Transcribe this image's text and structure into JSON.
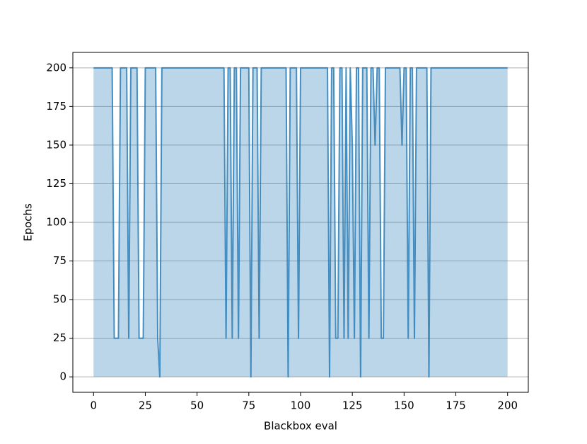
{
  "chart_data": {
    "type": "line",
    "xlabel": "Blackbox eval",
    "ylabel": "Epochs",
    "x": [
      0,
      1,
      2,
      3,
      4,
      5,
      6,
      7,
      8,
      9,
      10,
      11,
      12,
      13,
      14,
      15,
      16,
      17,
      18,
      19,
      20,
      21,
      22,
      23,
      24,
      25,
      26,
      27,
      28,
      29,
      30,
      31,
      32,
      33,
      34,
      35,
      36,
      37,
      38,
      39,
      40,
      41,
      42,
      43,
      44,
      45,
      46,
      47,
      48,
      49,
      50,
      51,
      52,
      53,
      54,
      55,
      56,
      57,
      58,
      59,
      60,
      61,
      62,
      63,
      64,
      65,
      66,
      67,
      68,
      69,
      70,
      71,
      72,
      73,
      74,
      75,
      76,
      77,
      78,
      79,
      80,
      81,
      82,
      83,
      84,
      85,
      86,
      87,
      88,
      89,
      90,
      91,
      92,
      93,
      94,
      95,
      96,
      97,
      98,
      99,
      100,
      101,
      102,
      103,
      104,
      105,
      106,
      107,
      108,
      109,
      110,
      111,
      112,
      113,
      114,
      115,
      116,
      117,
      118,
      119,
      120,
      121,
      122,
      123,
      124,
      125,
      126,
      127,
      128,
      129,
      130,
      131,
      132,
      133,
      134,
      135,
      136,
      137,
      138,
      139,
      140,
      141,
      142,
      143,
      144,
      145,
      146,
      147,
      148,
      149,
      150,
      151,
      152,
      153,
      154,
      155,
      156,
      157,
      158,
      159,
      160,
      161,
      162,
      163,
      164,
      165,
      166,
      167,
      168,
      169,
      170,
      171,
      172,
      173,
      174,
      175,
      176,
      177,
      178,
      179,
      180,
      181,
      182,
      183,
      184,
      185,
      186,
      187,
      188,
      189,
      190,
      191,
      192,
      193,
      194,
      195,
      196,
      197,
      198,
      199,
      200
    ],
    "values": [
      200,
      200,
      200,
      200,
      200,
      200,
      200,
      200,
      200,
      200,
      25,
      25,
      25,
      200,
      200,
      200,
      200,
      25,
      200,
      200,
      200,
      200,
      25,
      25,
      25,
      200,
      200,
      200,
      200,
      200,
      200,
      25,
      0,
      200,
      200,
      200,
      200,
      200,
      200,
      200,
      200,
      200,
      200,
      200,
      200,
      200,
      200,
      200,
      200,
      200,
      200,
      200,
      200,
      200,
      200,
      200,
      200,
      200,
      200,
      200,
      200,
      200,
      200,
      200,
      25,
      200,
      200,
      25,
      200,
      200,
      25,
      200,
      200,
      200,
      200,
      200,
      0,
      200,
      200,
      200,
      25,
      200,
      200,
      200,
      200,
      200,
      200,
      200,
      200,
      200,
      200,
      200,
      200,
      200,
      0,
      200,
      200,
      200,
      200,
      25,
      200,
      200,
      200,
      200,
      200,
      200,
      200,
      200,
      200,
      200,
      200,
      200,
      200,
      200,
      0,
      200,
      200,
      25,
      25,
      200,
      200,
      25,
      200,
      25,
      200,
      150,
      25,
      200,
      200,
      0,
      200,
      200,
      200,
      25,
      200,
      200,
      150,
      200,
      200,
      25,
      25,
      200,
      200,
      200,
      200,
      200,
      200,
      200,
      200,
      150,
      200,
      200,
      25,
      200,
      200,
      25,
      200,
      200,
      200,
      200,
      200,
      200,
      0,
      200,
      200,
      200,
      200,
      200,
      200,
      200,
      200,
      200,
      200,
      200,
      200,
      200,
      200,
      200,
      200,
      200,
      200,
      200,
      200,
      200,
      200,
      200,
      200,
      200,
      200,
      200,
      200,
      200,
      200,
      200,
      200,
      200,
      200,
      200,
      200,
      200,
      200
    ],
    "color": "#1f77b4",
    "fill": true,
    "xlim": [
      -10,
      210
    ],
    "xticks": [
      0,
      25,
      50,
      75,
      100,
      125,
      150,
      175,
      200
    ],
    "ylim": [
      -10,
      210
    ],
    "yticks": [
      0,
      25,
      50,
      75,
      100,
      125,
      150,
      175,
      200
    ],
    "grid": "y"
  }
}
